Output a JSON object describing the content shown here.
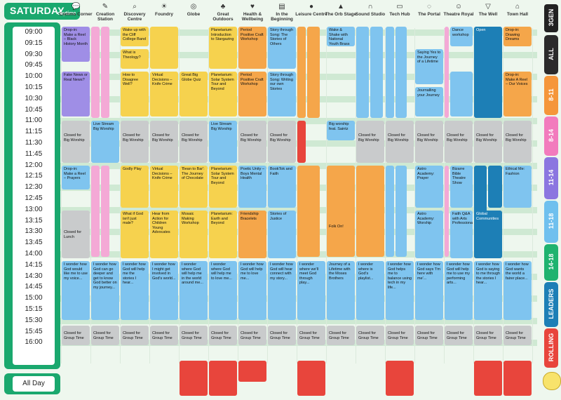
{
  "title": {
    "day": "SATURDAY",
    "sub": "daytime"
  },
  "times": [
    "09:00",
    "09:15",
    "09:30",
    "09:45",
    "10:00",
    "10:15",
    "10:30",
    "10:45",
    "11:00",
    "11:15",
    "11:30",
    "11:45",
    "12:00",
    "12:15",
    "12:30",
    "12:45",
    "13:00",
    "13:15",
    "13:30",
    "13:45",
    "14:00",
    "14:15",
    "14:30",
    "14:45",
    "15:00",
    "15:15",
    "15:30",
    "15:45",
    "16:00"
  ],
  "all_day": "All Day",
  "venues": [
    {
      "name": "Comms Corner",
      "icon": "chat-icon"
    },
    {
      "name": "Creation Station",
      "icon": "palette-icon"
    },
    {
      "name": "Discovery Centre",
      "icon": "magnifier-icon"
    },
    {
      "name": "Foundry",
      "icon": "bulb-icon"
    },
    {
      "name": "Globe",
      "icon": "globe-icon"
    },
    {
      "name": "Great Outdoors",
      "icon": "tree-icon"
    },
    {
      "name": "Health & Wellbeing",
      "icon": "heart-icon"
    },
    {
      "name": "In the Beginning",
      "icon": "book-icon"
    },
    {
      "name": "Leisure Centre",
      "icon": "ball-icon"
    },
    {
      "name": "The Orb Stage",
      "icon": "stage-icon"
    },
    {
      "name": "Sound Studio",
      "icon": "headphones-icon"
    },
    {
      "name": "Tech Hub",
      "icon": "laptop-icon"
    },
    {
      "name": "The Portal",
      "icon": "portal-icon"
    },
    {
      "name": "Theatre Royal",
      "icon": "masks-icon"
    },
    {
      "name": "The Well",
      "icon": "cup-icon"
    },
    {
      "name": "Town Hall",
      "icon": "hall-icon"
    }
  ],
  "brand": "3GEN",
  "legend": [
    "ALL",
    "8-11",
    "8-14",
    "11-14",
    "11-18",
    "14-18",
    "LEADERS",
    "ROLLING"
  ],
  "legend_colors": [
    "#2b2b2b",
    "#f5963a",
    "#f27bbd",
    "#8b76e0",
    "#6fc0ee",
    "#1fb36f",
    "#1d7fb6",
    "#e8453c"
  ],
  "cards": {
    "c0a": "Drop-in: Make a Reel – Black History Month",
    "c0b": "Fake News or Real News?",
    "c0c": "Closed for Big Worship",
    "c0d": "Drop-in: Make a Reel – Prayers",
    "c0e": "Closed for Lunch",
    "c0f": "Journey of a Lifetime",
    "c0g": "I wonder how God would like me to use my voice...",
    "c0h": "Closed for Group Time",
    "c1a": "Live Stream Big Worship",
    "c1b": "I wonder how God can go deeper and get to know God better on my journey...",
    "c1c": "Closed for Group Time",
    "c2a": "Wake up with the Cliff College Band",
    "c2b": "What is Theology?",
    "c2c": "How to Disagree Well?",
    "c2d": "Closed for Big Worship",
    "c2e": "Godly Play",
    "c2f": "What if God isn't just male?",
    "c2g": "I wonder how God will help me the stories I hear...",
    "c2h": "Closed for Group Time",
    "c3a": "Virtual Decisions – Knife Crime",
    "c3b": "Virtual Decisions – Knife Crime",
    "c3c": "Closed for Big Worship",
    "c3d": "Virtual Decisions – Knife Crime",
    "c3e": "Hear from Action for Children Young Advocates",
    "c3f": "I wonder how I might get involved in God's world...",
    "c3g": "Closed for Group Time",
    "c4a": "Great Big Globe Quiz",
    "c4b": "Closed for Big Worship",
    "c4c": "'Bean to Bar': The Journey of Chocolate",
    "c4d": "Mosaic Making Workshop",
    "c4e": "I wonder where God will help me in the world around me...",
    "c4f": "Closed for Group Time",
    "c5a": "Planetarium: Introduction to Stargazing",
    "c5b": "Planetarium: Solar System Tour and Beyond",
    "c5c": "Live Stream Big Worship",
    "c5d": "Planetarium: Solar System Tour and Beyond",
    "c5e": "Waves of Change",
    "c5f": "Planetarium: Earth and Beyond",
    "c5g": "I wonder where God will help me to love me...",
    "c5h": "Closed for Group Time",
    "c6a": "Period Positive Craft Workshop",
    "c6b": "Period Positive Craft Workshop",
    "c6c": "Closed for Big Worship",
    "c6d": "Poetic Unity – Boys Mental Health",
    "c6e": "Friendship Bracelets",
    "c6f": "I wonder how God will help me to love me...",
    "c6g": "Closed for Group Time",
    "c7a": "Story through Song: The Stories of Others",
    "c7b": "Story through Song: Writing our own Stories",
    "c7c": "Closed for Big Worship",
    "c7d": "BookTok and Faith",
    "c7e": "Stories of Justice",
    "c7f": "I wonder how God will hear connect with my story...",
    "c7g": "Closed for Group Time",
    "c8a": "I wonder where we'll meet God through play...",
    "c8b": "Closed for Group Time",
    "c9a": "Wake & Shake with National Youth Brass Band",
    "c9b": "Big worship feat. Saintz",
    "c9c": "Folk On!",
    "c9d": "Journey of a Lifetime with the Moses Brothers",
    "c9e": "Closed for Group Time",
    "c10a": "Closed for Big Worship",
    "c10b": "I wonder where is God's playlist...",
    "c10c": "Closed for Group Time",
    "c11a": "Closed for Big Worship",
    "c11b": "I wonder how God helps me to balance using tech in my life...",
    "c11c": "Closed for Group Time",
    "c12a": "Saying Yes to the Journey of a Lifetime",
    "c12b": "Journalling your Journey",
    "c12c": "Closed for Big Worship",
    "c12d": "Astro Academy: Prayer",
    "c12e": "Astro Academy: Worship",
    "c12f": "I wonder how God says 'I'm here with me'...",
    "c12g": "Closed for Group Time",
    "c13a": "Dance workshop",
    "c13b": "Closed for Big Worship",
    "c13c": "Bizarre Bible Theatre Show",
    "c13d": "Faith Q&A with Arts Professionals",
    "c13e": "I wonder how God will help me to use my performing arts...",
    "c13f": "Closed for Group Time",
    "c14a": "Open",
    "c14b": "Closed for Big Worship",
    "c14c": "Global Communities",
    "c14d": "I wonder how God is saying to me through the stories I hear...",
    "c14e": "Closed for Group Time",
    "c15a": "Drop-in: Drawing Dreams",
    "c15b": "Drop-in: Make A Reel – Our Voices",
    "c15c": "Closed for Big Worship",
    "c15d": "Ethical Me: Fashion",
    "c15e": "I wonder how God wants the world a fairer place...",
    "c15f": "Closed for Group Time"
  }
}
